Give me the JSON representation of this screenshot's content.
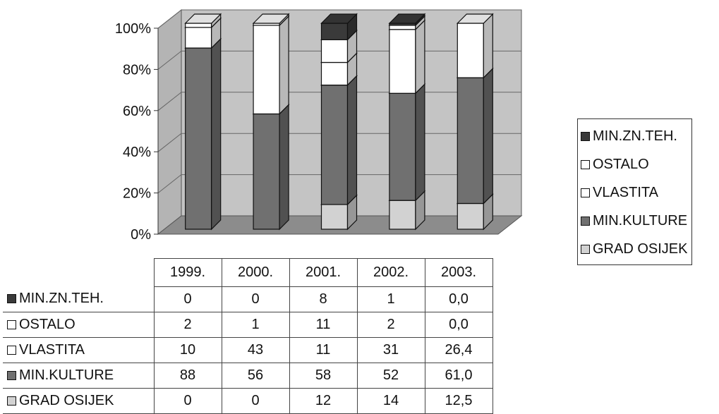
{
  "chart_data": {
    "type": "bar",
    "stacked": true,
    "percent_stacked": true,
    "three_d": true,
    "categories": [
      "1999.",
      "2000.",
      "2001.",
      "2002.",
      "2003."
    ],
    "series": [
      {
        "name": "GRAD OSIJEK",
        "color": "#d2d2d2",
        "values": [
          0,
          0,
          12,
          14,
          12.5
        ],
        "labels": [
          "0",
          "0",
          "12",
          "14",
          "12,5"
        ]
      },
      {
        "name": "MIN.KULTURE",
        "color": "#707070",
        "values": [
          88,
          56,
          58,
          52,
          61.0
        ],
        "labels": [
          "88",
          "56",
          "58",
          "52",
          "61,0"
        ]
      },
      {
        "name": "VLASTITA",
        "color": "#ffffff",
        "values": [
          10,
          43,
          11,
          31,
          26.4
        ],
        "labels": [
          "10",
          "43",
          "11",
          "31",
          "26,4"
        ]
      },
      {
        "name": "OSTALO",
        "color": "#ffffff",
        "values": [
          2,
          1,
          11,
          2,
          0.0
        ],
        "labels": [
          "2",
          "1",
          "11",
          "2",
          "0,0"
        ]
      },
      {
        "name": "MIN.ZN.TEH.",
        "color": "#3a3a3a",
        "values": [
          0,
          0,
          8,
          1,
          0.0
        ],
        "labels": [
          "0",
          "0",
          "8",
          "1",
          "0,0"
        ]
      }
    ],
    "y_ticks": [
      "0%",
      "20%",
      "40%",
      "60%",
      "80%",
      "100%"
    ],
    "ylim": [
      0,
      100
    ],
    "grid": true,
    "legend_position": "right",
    "data_table": true
  }
}
